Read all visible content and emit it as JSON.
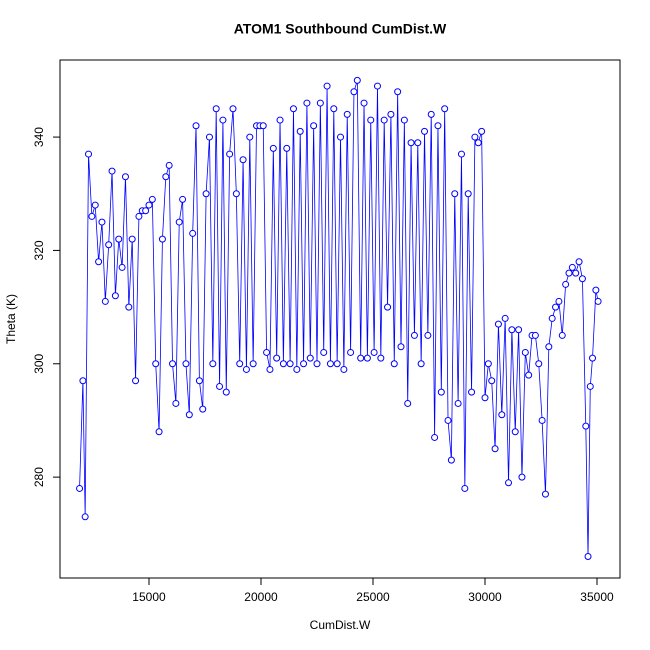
{
  "chart_data": {
    "type": "line",
    "markers": true,
    "title": "ATOM1 Southbound CumDist.W",
    "x_label": "CumDist.W",
    "y_label": "Theta (K)",
    "color": "#0000ff",
    "x": [
      11900,
      12050,
      12150,
      12300,
      12450,
      12600,
      12750,
      12900,
      13050,
      13200,
      13350,
      13500,
      13650,
      13800,
      13950,
      14100,
      14250,
      14400,
      14550,
      14700,
      14850,
      15000,
      15150,
      15300,
      15450,
      15600,
      15750,
      15900,
      16050,
      16200,
      16350,
      16500,
      16650,
      16800,
      16950,
      17100,
      17250,
      17400,
      17550,
      17700,
      17850,
      18000,
      18150,
      18300,
      18450,
      18600,
      18750,
      18900,
      19050,
      19200,
      19350,
      19500,
      19650,
      19800,
      19950,
      20100,
      20250,
      20400,
      20550,
      20700,
      20850,
      21000,
      21150,
      21300,
      21450,
      21600,
      21750,
      21900,
      22050,
      22200,
      22350,
      22500,
      22650,
      22800,
      22950,
      23100,
      23250,
      23400,
      23550,
      23700,
      23850,
      24000,
      24150,
      24300,
      24450,
      24600,
      24750,
      24900,
      25050,
      25200,
      25350,
      25500,
      25650,
      25800,
      25950,
      26100,
      26250,
      26400,
      26550,
      26700,
      26850,
      27000,
      27150,
      27300,
      27450,
      27600,
      27750,
      27900,
      28050,
      28200,
      28350,
      28500,
      28650,
      28800,
      28950,
      29100,
      29250,
      29400,
      29550,
      29700,
      29850,
      30000,
      30150,
      30300,
      30450,
      30600,
      30750,
      30900,
      31050,
      31200,
      31350,
      31500,
      31650,
      31800,
      31950,
      32100,
      32250,
      32400,
      32550,
      32700,
      32850,
      33000,
      33150,
      33300,
      33450,
      33600,
      33750,
      33900,
      34050,
      34200,
      34350,
      34500,
      34600,
      34700,
      34800,
      34950,
      35050
    ],
    "values": [
      278,
      297,
      273,
      337,
      326,
      328,
      318,
      325,
      311,
      321,
      334,
      312,
      322,
      317,
      333,
      310,
      322,
      297,
      326,
      327,
      327,
      328,
      329,
      300,
      288,
      322,
      333,
      335,
      300,
      293,
      325,
      329,
      300,
      291,
      323,
      342,
      297,
      292,
      330,
      340,
      300,
      345,
      296,
      343,
      295,
      337,
      345,
      330,
      300,
      336,
      299,
      340,
      300,
      342,
      342,
      342,
      302,
      299,
      338,
      301,
      343,
      300,
      338,
      300,
      345,
      299,
      341,
      300,
      346,
      301,
      342,
      300,
      346,
      302,
      349,
      300,
      345,
      300,
      340,
      299,
      344,
      302,
      348,
      350,
      301,
      346,
      301,
      343,
      302,
      349,
      301,
      343,
      310,
      344,
      300,
      348,
      303,
      343,
      293,
      339,
      305,
      339,
      300,
      341,
      305,
      344,
      287,
      342,
      295,
      345,
      290,
      283,
      330,
      293,
      337,
      278,
      330,
      295,
      340,
      339,
      341,
      294,
      300,
      297,
      285,
      307,
      291,
      308,
      279,
      306,
      288,
      306,
      280,
      302,
      298,
      305,
      305,
      300,
      290,
      277,
      303,
      308,
      310,
      311,
      305,
      314,
      316,
      317,
      316,
      318,
      315,
      289,
      266,
      296,
      301,
      313,
      311
    ],
    "xlim": [
      11027,
      36027
    ],
    "ylim": [
      262.2,
      353.6
    ],
    "xticks": [
      15000,
      20000,
      25000,
      30000,
      35000
    ],
    "yticks": [
      280,
      300,
      320,
      340
    ]
  }
}
